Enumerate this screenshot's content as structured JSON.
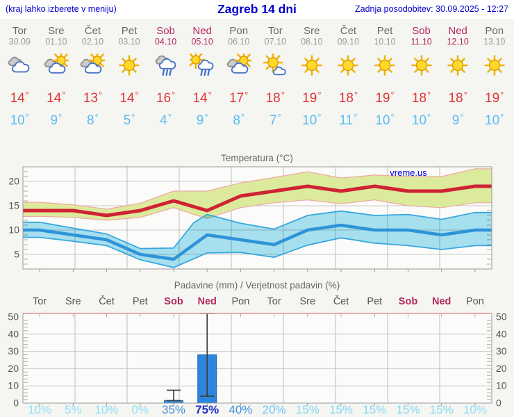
{
  "header": {
    "hint": "(kraj lahko izberete v meniju)",
    "title": "Zagreb 14 dni",
    "updated": "Zadnja posodobitev: 30.09.2025 - 12:27"
  },
  "degree_symbol": "°",
  "watermark": "vreme.us",
  "colors": {
    "link_blue": "#0000cc",
    "tmax_red": "#e03636",
    "tmin_blue": "#58bdf0",
    "weekend_red": "#b3285e",
    "max_line": "#cf2333",
    "min_line": "#2e94d9",
    "max_band_fill": "#dcea9c",
    "max_band_edge": "#eda9a2",
    "min_band_fill": "#a9e3f3",
    "min_band_edge": "#36a7e0",
    "bar_blue": "#2c87dc",
    "axis_gray": "#999999",
    "grid_gray": "#c8c8c8",
    "precip_top_axis": "#e59595"
  },
  "days": [
    {
      "name": "Tor",
      "date": "30.09",
      "weekend": false,
      "icon": "cloudy",
      "tmax": "14",
      "tmin": "10"
    },
    {
      "name": "Sre",
      "date": "01.10",
      "weekend": false,
      "icon": "sun-cloud",
      "tmax": "14",
      "tmin": "9"
    },
    {
      "name": "Čet",
      "date": "02.10",
      "weekend": false,
      "icon": "sun-cloud",
      "tmax": "13",
      "tmin": "8"
    },
    {
      "name": "Pet",
      "date": "03.10",
      "weekend": false,
      "icon": "sunny",
      "tmax": "14",
      "tmin": "5"
    },
    {
      "name": "Sob",
      "date": "04.10",
      "weekend": true,
      "icon": "rain",
      "tmax": "16",
      "tmin": "4"
    },
    {
      "name": "Ned",
      "date": "05.10",
      "weekend": true,
      "icon": "sun-rain",
      "tmax": "14",
      "tmin": "9"
    },
    {
      "name": "Pon",
      "date": "06.10",
      "weekend": false,
      "icon": "sun-cloud",
      "tmax": "17",
      "tmin": "8"
    },
    {
      "name": "Tor",
      "date": "07.10",
      "weekend": false,
      "icon": "sun-small-cloud",
      "tmax": "18",
      "tmin": "7"
    },
    {
      "name": "Sre",
      "date": "08.10",
      "weekend": false,
      "icon": "sunny",
      "tmax": "19",
      "tmin": "10"
    },
    {
      "name": "Čet",
      "date": "09.10",
      "weekend": false,
      "icon": "sunny",
      "tmax": "18",
      "tmin": "11"
    },
    {
      "name": "Pet",
      "date": "10.10",
      "weekend": false,
      "icon": "sunny",
      "tmax": "19",
      "tmin": "10"
    },
    {
      "name": "Sob",
      "date": "11.10",
      "weekend": true,
      "icon": "sunny",
      "tmax": "18",
      "tmin": "10"
    },
    {
      "name": "Ned",
      "date": "12.10",
      "weekend": true,
      "icon": "sunny",
      "tmax": "18",
      "tmin": "9"
    },
    {
      "name": "Pon",
      "date": "13.10",
      "weekend": false,
      "icon": "sunny",
      "tmax": "19",
      "tmin": "10"
    }
  ],
  "chart_data": [
    {
      "type": "line",
      "title": "Temperatura (°C)",
      "categories": [
        "30.09",
        "01.10",
        "02.10",
        "03.10",
        "04.10",
        "05.10",
        "06.10",
        "07.10",
        "08.10",
        "09.10",
        "10.10",
        "11.10",
        "12.10",
        "13.10"
      ],
      "ylim": [
        2,
        23
      ],
      "yticks": [
        5,
        10,
        15,
        20
      ],
      "grid": true,
      "legend": "none",
      "series": [
        {
          "name": "max-temperatura",
          "color": "#cf2333",
          "values": [
            14,
            14,
            13,
            14,
            16,
            14,
            17,
            18,
            19,
            18,
            19,
            18,
            18,
            19
          ]
        },
        {
          "name": "min-temperatura",
          "color": "#2e94d9",
          "values": [
            10,
            9,
            8,
            5,
            4,
            9,
            8,
            7,
            10,
            11,
            10,
            10,
            9,
            10
          ]
        }
      ],
      "bands": [
        {
          "name": "max-range",
          "fill": "#dcea9c",
          "edge": "#eda9a2",
          "upper_x": [
            0,
            1,
            2,
            3,
            4,
            5,
            6,
            7,
            8,
            9,
            10,
            11,
            12,
            13
          ],
          "upper": [
            15.7,
            15.2,
            14.3,
            15.5,
            18,
            18,
            19.7,
            20.8,
            22,
            20.7,
            21.3,
            21,
            21,
            22.6
          ],
          "lower_x": [
            0,
            1,
            2,
            3,
            4,
            4.6,
            5,
            6,
            7,
            8,
            9,
            10,
            11,
            12,
            13
          ],
          "lower": [
            12.8,
            12.6,
            12,
            12.6,
            14.6,
            13.2,
            12.4,
            14.6,
            15.6,
            16.2,
            15.4,
            16.2,
            15,
            14.6,
            15.6
          ]
        },
        {
          "name": "min-range",
          "fill": "#a9e3f3",
          "edge": "#36a7e0",
          "upper_x": [
            0,
            1,
            2,
            3,
            4,
            4.6,
            5,
            6,
            7,
            8,
            9,
            10,
            11,
            12,
            13
          ],
          "upper": [
            11.6,
            10.4,
            9.2,
            6.2,
            6.3,
            11.5,
            13.2,
            11.4,
            10.2,
            13,
            13.9,
            13,
            13.2,
            12.2,
            13.6
          ],
          "lower_x": [
            0,
            1,
            2,
            3,
            4,
            5,
            6,
            7,
            8,
            9,
            10,
            11,
            12,
            13
          ],
          "lower": [
            8.5,
            7.7,
            6.8,
            3.9,
            2.3,
            5.3,
            5.4,
            4.4,
            6.9,
            8.4,
            7.3,
            6.8,
            6,
            6.8
          ]
        }
      ]
    },
    {
      "type": "bar",
      "title": "Padavine (mm) / Verjetnost padavin (%)",
      "categories": [
        "Tor",
        "Sre",
        "Čet",
        "Pet",
        "Sob",
        "Ned",
        "Pon",
        "Tor",
        "Sre",
        "Čet",
        "Pet",
        "Sob",
        "Ned",
        "Pon"
      ],
      "weekend_indices": [
        4,
        5,
        11,
        12
      ],
      "ylim": [
        0,
        52
      ],
      "yticks": [
        0,
        10,
        20,
        30,
        40,
        50
      ],
      "values": [
        0,
        0,
        0,
        0,
        1.5,
        28,
        0,
        0,
        0,
        0,
        0,
        0,
        0,
        0
      ],
      "whiskers": [
        null,
        null,
        null,
        null,
        {
          "low": 1.5,
          "high": 7.5
        },
        {
          "low": 4,
          "high": 52
        },
        null,
        null,
        null,
        null,
        null,
        null,
        null,
        null
      ],
      "bar_color": "#2c87dc",
      "probabilities": [
        {
          "label": "10%",
          "color": "#8edff6",
          "bold": false
        },
        {
          "label": "5%",
          "color": "#8edff6",
          "bold": false
        },
        {
          "label": "10%",
          "color": "#8edff6",
          "bold": false
        },
        {
          "label": "0%",
          "color": "#8edff6",
          "bold": false
        },
        {
          "label": "35%",
          "color": "#4a8fd6",
          "bold": false
        },
        {
          "label": "75%",
          "color": "#1e2ec8",
          "bold": true
        },
        {
          "label": "40%",
          "color": "#3e8fe8",
          "bold": false
        },
        {
          "label": "20%",
          "color": "#6cc6f2",
          "bold": false
        },
        {
          "label": "15%",
          "color": "#83d7f5",
          "bold": false
        },
        {
          "label": "15%",
          "color": "#83d7f5",
          "bold": false
        },
        {
          "label": "15%",
          "color": "#83d7f5",
          "bold": false
        },
        {
          "label": "15%",
          "color": "#83d7f5",
          "bold": false
        },
        {
          "label": "15%",
          "color": "#83d7f5",
          "bold": false
        },
        {
          "label": "10%",
          "color": "#8edff6",
          "bold": false
        }
      ]
    }
  ]
}
